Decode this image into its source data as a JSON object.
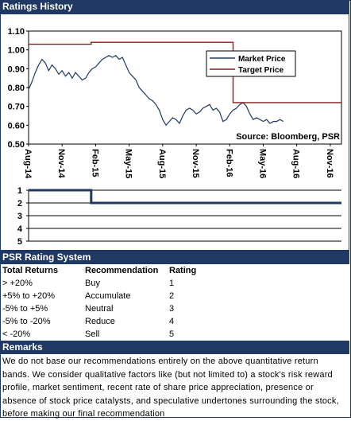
{
  "header": {
    "title": "Ratings History"
  },
  "chart_data": [
    {
      "type": "line",
      "title": "",
      "ylim": [
        0.5,
        1.1
      ],
      "yticks": [
        "1.10",
        "1.00",
        "0.90",
        "0.80",
        "0.70",
        "0.60",
        "0.50"
      ],
      "xticks": [
        "Aug-14",
        "Nov-14",
        "Feb-15",
        "May-15",
        "Aug-15",
        "Nov-15",
        "Feb-16",
        "May-16",
        "Aug-16",
        "Nov-16"
      ],
      "xrange_months": [
        0,
        28
      ],
      "series": [
        {
          "name": "Market Price",
          "color": "#1f3864",
          "points": [
            [
              0.0,
              0.79
            ],
            [
              0.3,
              0.83
            ],
            [
              0.6,
              0.88
            ],
            [
              0.9,
              0.92
            ],
            [
              1.2,
              0.95
            ],
            [
              1.5,
              0.93
            ],
            [
              1.8,
              0.89
            ],
            [
              2.1,
              0.92
            ],
            [
              2.4,
              0.9
            ],
            [
              2.7,
              0.87
            ],
            [
              3.0,
              0.89
            ],
            [
              3.3,
              0.86
            ],
            [
              3.6,
              0.88
            ],
            [
              3.9,
              0.85
            ],
            [
              4.2,
              0.88
            ],
            [
              4.5,
              0.86
            ],
            [
              4.8,
              0.84
            ],
            [
              5.1,
              0.85
            ],
            [
              5.4,
              0.88
            ],
            [
              5.7,
              0.9
            ],
            [
              6.0,
              0.91
            ],
            [
              6.3,
              0.93
            ],
            [
              6.6,
              0.95
            ],
            [
              6.9,
              0.96
            ],
            [
              7.2,
              0.97
            ],
            [
              7.5,
              0.96
            ],
            [
              7.8,
              0.97
            ],
            [
              8.1,
              0.95
            ],
            [
              8.4,
              0.96
            ],
            [
              8.7,
              0.92
            ],
            [
              9.0,
              0.88
            ],
            [
              9.3,
              0.86
            ],
            [
              9.6,
              0.84
            ],
            [
              9.9,
              0.8
            ],
            [
              10.2,
              0.78
            ],
            [
              10.5,
              0.76
            ],
            [
              10.8,
              0.74
            ],
            [
              11.1,
              0.73
            ],
            [
              11.4,
              0.71
            ],
            [
              11.7,
              0.68
            ],
            [
              12.0,
              0.63
            ],
            [
              12.3,
              0.6
            ],
            [
              12.6,
              0.62
            ],
            [
              12.9,
              0.64
            ],
            [
              13.2,
              0.63
            ],
            [
              13.5,
              0.61
            ],
            [
              13.8,
              0.65
            ],
            [
              14.1,
              0.68
            ],
            [
              14.4,
              0.69
            ],
            [
              14.7,
              0.68
            ],
            [
              15.0,
              0.66
            ],
            [
              15.3,
              0.67
            ],
            [
              15.6,
              0.69
            ],
            [
              15.9,
              0.7
            ],
            [
              16.2,
              0.71
            ],
            [
              16.5,
              0.68
            ],
            [
              16.8,
              0.69
            ],
            [
              17.1,
              0.67
            ],
            [
              17.4,
              0.62
            ],
            [
              17.7,
              0.63
            ],
            [
              18.0,
              0.66
            ],
            [
              18.3,
              0.68
            ],
            [
              18.6,
              0.69
            ],
            [
              18.9,
              0.71
            ],
            [
              19.2,
              0.72
            ],
            [
              19.5,
              0.7
            ],
            [
              19.8,
              0.66
            ],
            [
              20.1,
              0.63
            ],
            [
              20.4,
              0.64
            ],
            [
              20.7,
              0.63
            ],
            [
              21.0,
              0.62
            ],
            [
              21.3,
              0.63
            ],
            [
              21.6,
              0.61
            ],
            [
              21.9,
              0.62
            ],
            [
              22.2,
              0.62
            ],
            [
              22.5,
              0.63
            ],
            [
              22.8,
              0.62
            ]
          ]
        },
        {
          "name": "Target Price",
          "color": "#8b1a1a",
          "points": [
            [
              0.0,
              1.03
            ],
            [
              5.6,
              1.03
            ],
            [
              5.6,
              1.04
            ],
            [
              18.3,
              1.04
            ],
            [
              18.3,
              0.72
            ],
            [
              28.0,
              0.72
            ]
          ]
        }
      ],
      "legend": [
        "Market Price",
        "Target Price"
      ],
      "legend_position": "top-right",
      "annotation": "Source: Bloomberg, PSR"
    },
    {
      "type": "line",
      "title": "",
      "ylim": [
        1,
        5
      ],
      "yticks": [
        "1",
        "2",
        "3",
        "4",
        "5"
      ],
      "series": [
        {
          "name": "",
          "color": "#1f3864",
          "points": [
            [
              0.0,
              1
            ],
            [
              5.6,
              1
            ],
            [
              5.6,
              2
            ],
            [
              28.0,
              2
            ]
          ]
        }
      ]
    }
  ],
  "psr": {
    "title": "PSR Rating System",
    "columns": [
      "Total Returns",
      "Recommendation",
      "Rating"
    ],
    "rows": [
      [
        "> +20%",
        "Buy",
        "1"
      ],
      [
        "+5% to +20%",
        "Accumulate",
        "2"
      ],
      [
        "-5% to +5%",
        "Neutral",
        "3"
      ],
      [
        "-5% to -20%",
        "Reduce",
        "4"
      ],
      [
        "< -20%",
        "Sell",
        "5"
      ]
    ]
  },
  "remarks": {
    "title": "Remarks",
    "text": "We do not base our recommendations entirely on the  above quantitative return bands.  We consider qualitative factors like (but not limited to) a stock's risk reward profile, market sentiment, recent rate of share price appreciation, presence or absence of stock price catalysts, and speculative undertones surrounding the stock, before making our final recommendation"
  }
}
